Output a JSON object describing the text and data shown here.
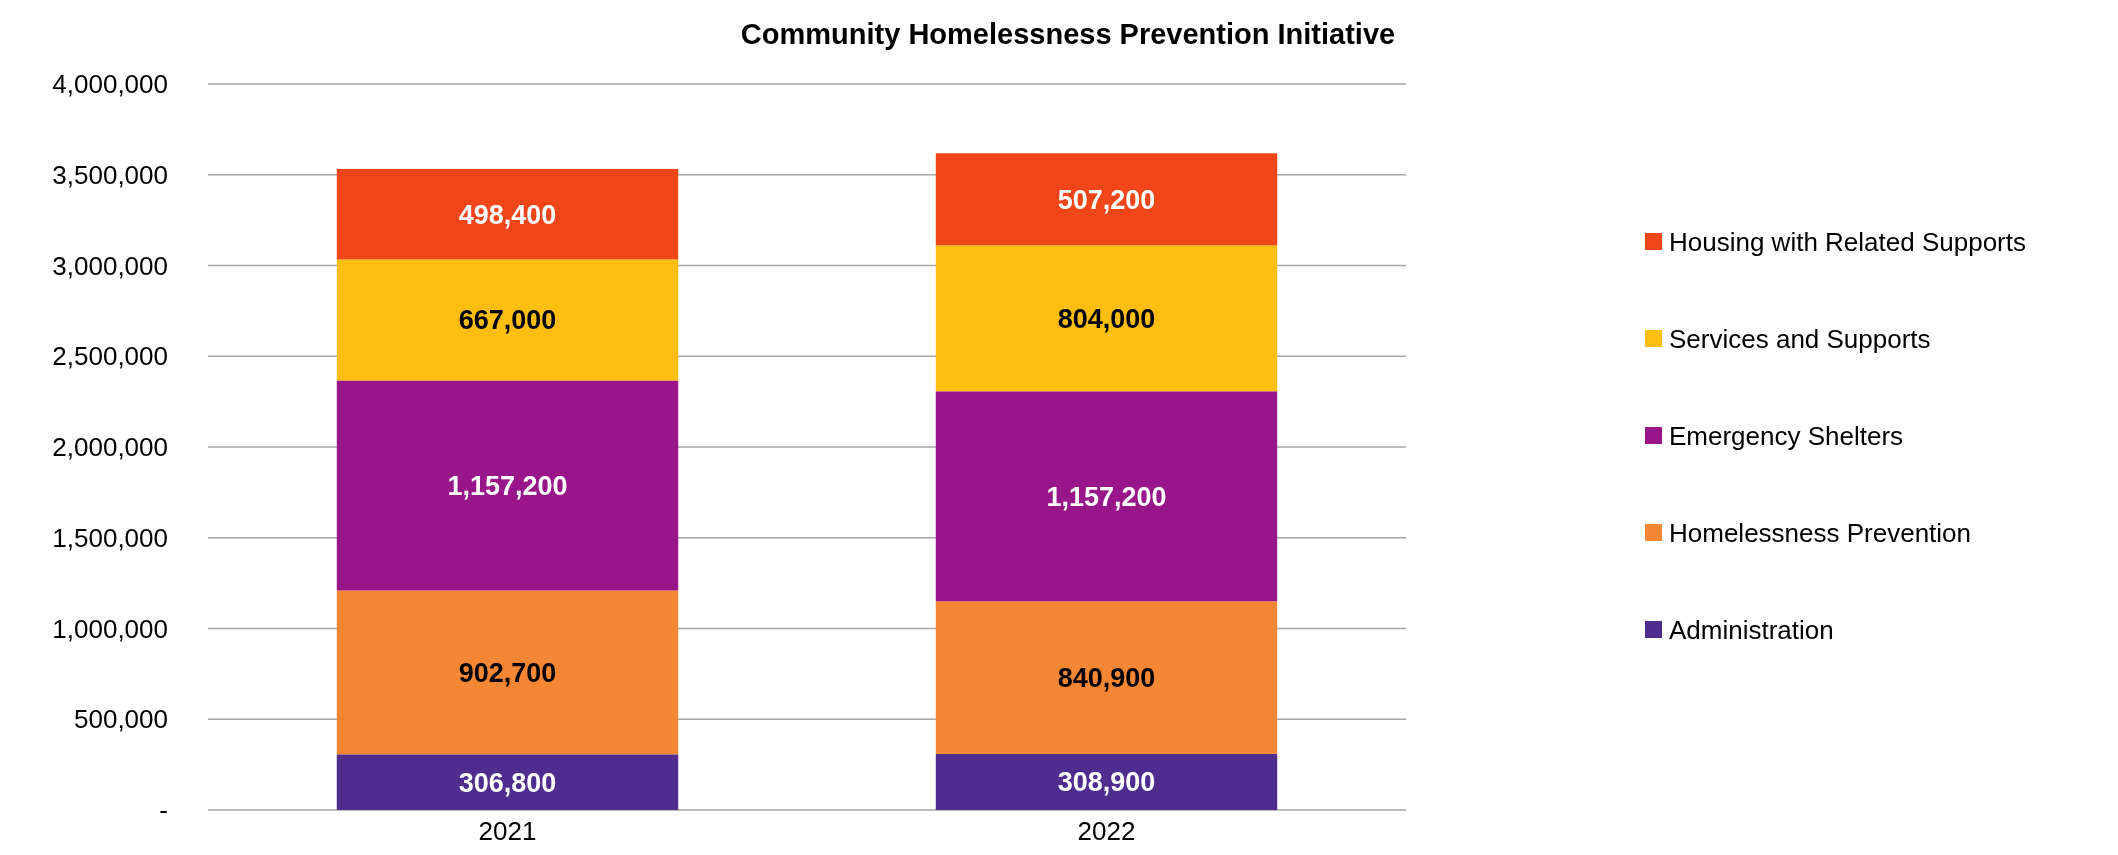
{
  "chart_data": {
    "type": "bar",
    "title": "Community Homelessness Prevention Initiative",
    "categories": [
      "2021",
      "2022"
    ],
    "stacked": true,
    "grid": "y",
    "legend": "right",
    "ylim": [
      0,
      4000000
    ],
    "yticks": [
      {
        "value": 0,
        "label": "-"
      },
      {
        "value": 500000,
        "label": "500,000"
      },
      {
        "value": 1000000,
        "label": "1,000,000"
      },
      {
        "value": 1500000,
        "label": "1,500,000"
      },
      {
        "value": 2000000,
        "label": "2,000,000"
      },
      {
        "value": 2500000,
        "label": "2,500,000"
      },
      {
        "value": 3000000,
        "label": "3,000,000"
      },
      {
        "value": 3500000,
        "label": "3,500,000"
      },
      {
        "value": 4000000,
        "label": "4,000,000"
      }
    ],
    "series": [
      {
        "name": "Administration",
        "color": "#4f2d8f",
        "values": [
          306800,
          308900
        ],
        "value_labels": [
          "306,800",
          "308,900"
        ]
      },
      {
        "name": "Homelessness Prevention",
        "color": "#f58634",
        "values": [
          902700,
          840900
        ],
        "value_labels": [
          "902,700",
          "840,900"
        ]
      },
      {
        "name": "Emergency Shelters",
        "color": "#98168a",
        "values": [
          1157200,
          1157200
        ],
        "value_labels": [
          "1,157,200",
          "1,157,200"
        ]
      },
      {
        "name": "Services and Supports",
        "color": "#fdbe10",
        "values": [
          667000,
          804000
        ],
        "value_labels": [
          "667,000",
          "804,000"
        ]
      },
      {
        "name": "Housing with Related Supports",
        "color": "#f04619",
        "values": [
          498400,
          507200
        ],
        "value_labels": [
          "498,400",
          "507,200"
        ]
      }
    ]
  }
}
